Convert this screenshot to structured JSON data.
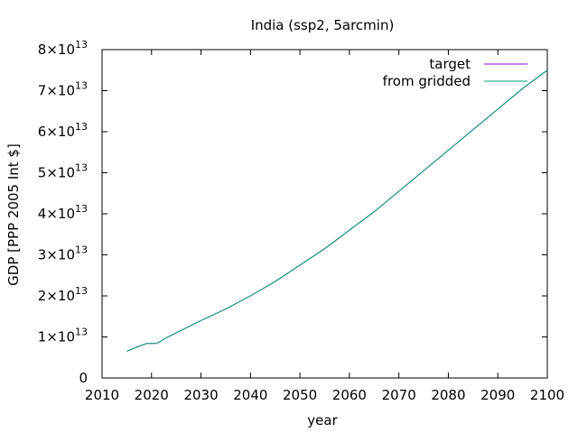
{
  "chart_data": {
    "type": "line",
    "title": "India (ssp2, 5arcmin)",
    "xlabel": "year",
    "ylabel": "GDP [PPP 2005 Int $]",
    "xlim": [
      2010,
      2100
    ],
    "ylim": [
      0,
      80000000000000.0
    ],
    "x_ticks": [
      2010,
      2020,
      2030,
      2040,
      2050,
      2060,
      2070,
      2080,
      2090,
      2100
    ],
    "y_ticks": [
      {
        "value": 0,
        "mantissa": "0",
        "exp": ""
      },
      {
        "value": 10000000000000.0,
        "mantissa": "1×10",
        "exp": "13"
      },
      {
        "value": 20000000000000.0,
        "mantissa": "2×10",
        "exp": "13"
      },
      {
        "value": 30000000000000.0,
        "mantissa": "3×10",
        "exp": "13"
      },
      {
        "value": 40000000000000.0,
        "mantissa": "4×10",
        "exp": "13"
      },
      {
        "value": 50000000000000.0,
        "mantissa": "5×10",
        "exp": "13"
      },
      {
        "value": 60000000000000.0,
        "mantissa": "6×10",
        "exp": "13"
      },
      {
        "value": 70000000000000.0,
        "mantissa": "7×10",
        "exp": "13"
      },
      {
        "value": 80000000000000.0,
        "mantissa": "8×10",
        "exp": "13"
      }
    ],
    "grid": false,
    "legend_position": "top-right",
    "x": [
      2015,
      2017,
      2019,
      2021,
      2023,
      2025,
      2030,
      2035,
      2040,
      2045,
      2050,
      2055,
      2060,
      2065,
      2070,
      2075,
      2080,
      2085,
      2090,
      2095,
      2100
    ],
    "series": [
      {
        "name": "target",
        "color": "#9400d3",
        "values": [
          6500000000000.0,
          7500000000000.0,
          8400000000000.0,
          8400000000000.0,
          9800000000000.0,
          11000000000000.0,
          14000000000000.0,
          16800000000000.0,
          20000000000000.0,
          23500000000000.0,
          27500000000000.0,
          31500000000000.0,
          36000000000000.0,
          40500000000000.0,
          45500000000000.0,
          50500000000000.0,
          55500000000000.0,
          60500000000000.0,
          65500000000000.0,
          70500000000000.0,
          75000000000000.0
        ]
      },
      {
        "name": "from gridded",
        "color": "#009e73",
        "values": [
          6500000000000.0,
          7500000000000.0,
          8400000000000.0,
          8400000000000.0,
          9800000000000.0,
          11000000000000.0,
          14000000000000.0,
          16800000000000.0,
          20000000000000.0,
          23500000000000.0,
          27500000000000.0,
          31500000000000.0,
          36000000000000.0,
          40500000000000.0,
          45500000000000.0,
          50500000000000.0,
          55500000000000.0,
          60500000000000.0,
          65500000000000.0,
          70500000000000.0,
          75000000000000.0
        ]
      }
    ]
  }
}
